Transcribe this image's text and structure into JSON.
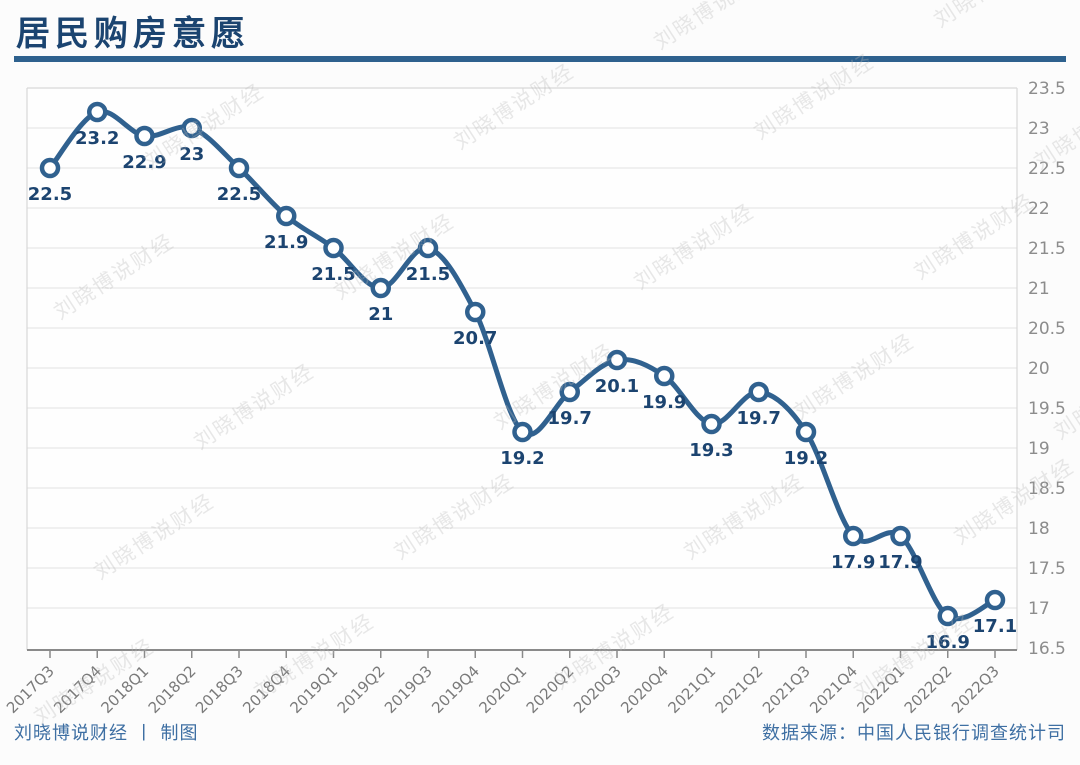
{
  "title": "居民购房意愿",
  "watermark": "刘晓博说财经",
  "footer": {
    "left": "刘晓博说财经 丨 制图",
    "right": "数据来源：中国人民银行调查统计司"
  },
  "colors": {
    "title": "#1b4470",
    "underline": "#2e618e",
    "line": "#30618f",
    "marker_fill": "#ffffff",
    "data_label": "#1c4470",
    "grid": "#e8e8e8",
    "plot_border": "#d8d8d8",
    "axis": "#8a8a8a",
    "tick_label": "#8c8c8c",
    "x_label": "#7a7a7a",
    "footer_text": "#3e6fa3",
    "watermark": "#b9b9b9",
    "background": "#fcfcfc"
  },
  "chart_data": {
    "type": "line",
    "title": "居民购房意愿",
    "xlabel": "",
    "ylabel": "",
    "categories": [
      "2017Q3",
      "2017Q4",
      "2018Q1",
      "2018Q2",
      "2018Q3",
      "2018Q4",
      "2019Q1",
      "2019Q2",
      "2019Q3",
      "2019Q4",
      "2020Q1",
      "2020Q2",
      "2020Q3",
      "2020Q4",
      "2021Q1",
      "2021Q2",
      "2021Q3",
      "2021Q4",
      "2022Q1",
      "2022Q2",
      "2022Q3"
    ],
    "values": [
      22.5,
      23.2,
      22.9,
      23,
      22.5,
      21.9,
      21.5,
      21,
      21.5,
      20.7,
      19.2,
      19.7,
      20.1,
      19.9,
      19.3,
      19.7,
      19.2,
      17.9,
      17.9,
      16.9,
      17.1
    ],
    "point_labels": [
      "22.5",
      "23.2",
      "22.9",
      "23",
      "22.5",
      "21.9",
      "21.5",
      "21",
      "21.5",
      "20.7",
      "19.2",
      "19.7",
      "20.1",
      "19.9",
      "19.3",
      "19.7",
      "19.2",
      "17.9",
      "17.9",
      "16.9",
      "17.1"
    ],
    "ylim": [
      16.5,
      23.5
    ],
    "ytick_step": 0.5,
    "ytick_labels": [
      "23.5",
      "23",
      "22.5",
      "22",
      "21.5",
      "21",
      "20.5",
      "20",
      "19.5",
      "19",
      "18.5",
      "18",
      "17.5",
      "17",
      "16.5"
    ],
    "yaxis_side": "right",
    "grid": true,
    "legend": "none",
    "marker": "open-circle",
    "line_smooth": true
  }
}
